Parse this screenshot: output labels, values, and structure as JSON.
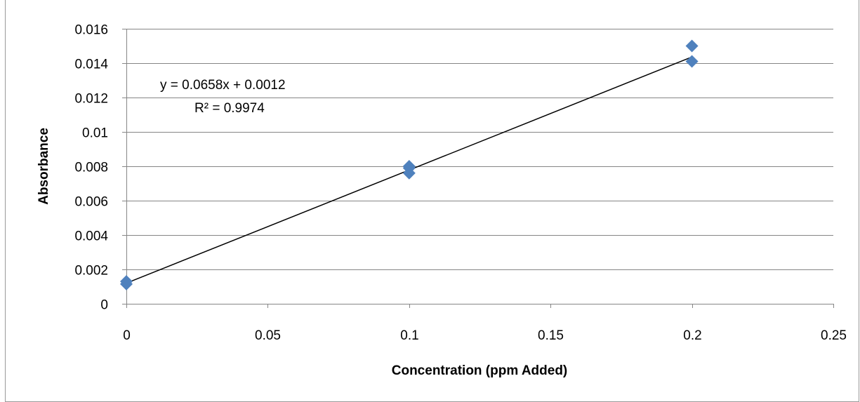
{
  "chart_data": {
    "type": "scatter",
    "title": "",
    "xlabel": "Concentration (ppm Added)",
    "ylabel": "Absorbance",
    "xlim": [
      0,
      0.25
    ],
    "ylim": [
      0,
      0.016
    ],
    "x_ticks": [
      "0",
      "0.05",
      "0.1",
      "0.15",
      "0.2",
      "0.25"
    ],
    "y_ticks": [
      "0",
      "0.002",
      "0.004",
      "0.006",
      "0.008",
      "0.01",
      "0.012",
      "0.014",
      "0.016"
    ],
    "grid": "horizontal",
    "legend": "none",
    "marker": "diamond",
    "series": [
      {
        "color": "#4f81bd",
        "points": [
          {
            "x": 0,
            "y": 0.00115
          },
          {
            "x": 0,
            "y": 0.0013
          },
          {
            "x": 0.1,
            "y": 0.0076
          },
          {
            "x": 0.1,
            "y": 0.0079
          },
          {
            "x": 0.1,
            "y": 0.008
          },
          {
            "x": 0.2,
            "y": 0.0141
          },
          {
            "x": 0.2,
            "y": 0.015
          }
        ]
      }
    ],
    "trendline": {
      "type": "linear",
      "slope": 0.0658,
      "intercept": 0.0012,
      "x_range": [
        0,
        0.2
      ],
      "color": "#000000",
      "equation_label": "y = 0.0658x + 0.0012",
      "r_squared_label": "R² = 0.9974"
    },
    "colors": {
      "gridline": "#868686",
      "axis": "#868686",
      "frame": "#9a9a9a"
    }
  }
}
